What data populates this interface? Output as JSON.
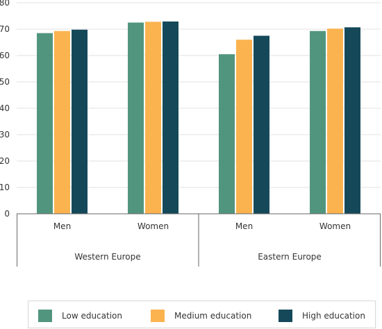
{
  "chart_data": {
    "type": "bar",
    "groups": [
      {
        "name": "Western Europe",
        "categories": [
          "Men",
          "Women"
        ]
      },
      {
        "name": "Eastern Europe",
        "categories": [
          "Men",
          "Women"
        ]
      }
    ],
    "categories": [
      "Men",
      "Women",
      "Men",
      "Women"
    ],
    "series": [
      {
        "name": "Low education",
        "color": "#52957f",
        "values": [
          68.5,
          72.5,
          60.5,
          69.3
        ]
      },
      {
        "name": "Medium education",
        "color": "#fbb350",
        "values": [
          69.3,
          72.8,
          66.0,
          70.2
        ]
      },
      {
        "name": "High education",
        "color": "#15495a",
        "values": [
          69.8,
          72.9,
          67.5,
          70.7
        ]
      }
    ],
    "ylim": [
      0,
      80
    ],
    "yticks": [
      0,
      10,
      20,
      30,
      40,
      50,
      60,
      70,
      80
    ],
    "grid": true,
    "legend_position": "bottom"
  },
  "legend": [
    {
      "label": "Low education",
      "color": "#52957f"
    },
    {
      "label": "Medium education",
      "color": "#fbb350"
    },
    {
      "label": "High education",
      "color": "#15495a"
    }
  ]
}
